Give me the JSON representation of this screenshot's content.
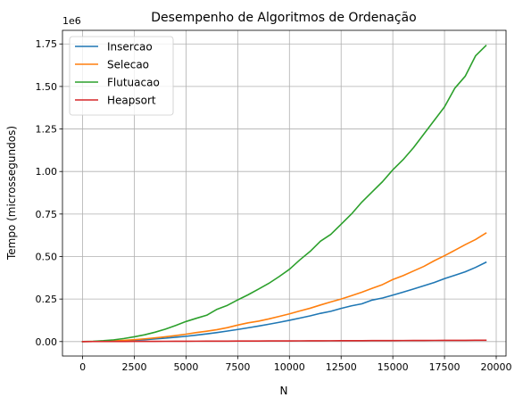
{
  "chart_data": {
    "type": "line",
    "title": "Desempenho de Algoritmos de Ordenação",
    "xlabel": "N",
    "ylabel": "Tempo (microssegundos)",
    "y_offset_label": "1e6",
    "xlim": [
      -975,
      20475
    ],
    "ylim": [
      -85000,
      1830000
    ],
    "x_ticks": [
      0,
      2500,
      5000,
      7500,
      10000,
      12500,
      15000,
      17500,
      20000
    ],
    "x_tick_labels": [
      "0",
      "2500",
      "5000",
      "7500",
      "10000",
      "12500",
      "15000",
      "17500",
      "20000"
    ],
    "y_ticks": [
      0,
      250000,
      500000,
      750000,
      1000000,
      1250000,
      1500000,
      1750000
    ],
    "y_tick_labels": [
      "0.00",
      "0.25",
      "0.50",
      "0.75",
      "1.00",
      "1.25",
      "1.50",
      "1.75"
    ],
    "grid": true,
    "legend_position": "upper-left",
    "x": [
      0,
      500,
      1000,
      1500,
      2000,
      2500,
      3000,
      3500,
      4000,
      4500,
      5000,
      5500,
      6000,
      6500,
      7000,
      7500,
      8000,
      8500,
      9000,
      9500,
      10000,
      10500,
      11000,
      11500,
      12000,
      12500,
      13000,
      13500,
      14000,
      14500,
      15000,
      15500,
      16000,
      16500,
      17000,
      17500,
      18000,
      18500,
      19000,
      19500
    ],
    "series": [
      {
        "name": "Insercao",
        "color": "#1f77b4",
        "values": [
          0,
          300,
          1200,
          2800,
          5000,
          7800,
          11200,
          15300,
          20000,
          25300,
          31000,
          38000,
          45000,
          53000,
          62000,
          71000,
          81000,
          91000,
          102000,
          113000,
          125000,
          138000,
          151000,
          166000,
          178000,
          195000,
          210000,
          222000,
          244000,
          256000,
          273000,
          291000,
          309000,
          328000,
          347000,
          370000,
          390000,
          410000,
          436000,
          466000
        ]
      },
      {
        "name": "Selecao",
        "color": "#ff7f0e",
        "values": [
          0,
          500,
          1800,
          4000,
          7000,
          11000,
          16000,
          21500,
          28000,
          35500,
          43500,
          53000,
          61000,
          70000,
          82000,
          97000,
          110000,
          120000,
          133000,
          148000,
          163000,
          180000,
          196000,
          215000,
          233000,
          250000,
          270000,
          290000,
          313000,
          335000,
          365000,
          388000,
          415000,
          442000,
          475000,
          505000,
          537000,
          570000,
          600000,
          638000
        ]
      },
      {
        "name": "Flutuacao",
        "color": "#2ca02c",
        "values": [
          0,
          1500,
          5000,
          10000,
          18000,
          28000,
          40000,
          55000,
          73000,
          95000,
          118000,
          137000,
          155000,
          190000,
          213000,
          245000,
          275000,
          308000,
          342000,
          382000,
          425000,
          480000,
          530000,
          590000,
          630000,
          690000,
          750000,
          820000,
          880000,
          940000,
          1010000,
          1070000,
          1140000,
          1220000,
          1300000,
          1380000,
          1490000,
          1560000,
          1680000,
          1740000
        ]
      },
      {
        "name": "Heapsort",
        "color": "#d62728",
        "values": [
          0,
          200,
          400,
          600,
          800,
          1000,
          1200,
          1400,
          1600,
          1800,
          2000,
          2200,
          2400,
          2600,
          2800,
          3000,
          3200,
          3400,
          3600,
          3800,
          4000,
          4200,
          4400,
          4600,
          4800,
          5000,
          5200,
          5400,
          5600,
          5800,
          6000,
          6200,
          6400,
          6600,
          6800,
          7000,
          7200,
          7400,
          7600,
          7800
        ]
      }
    ]
  }
}
